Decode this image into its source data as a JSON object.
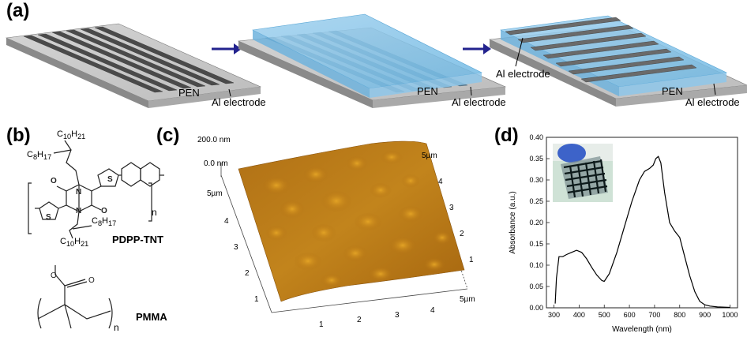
{
  "panels": {
    "a": {
      "letter": "(a)",
      "substrate_label": "PEN",
      "electrode_label": "Al electrode"
    },
    "b": {
      "letter": "(b)",
      "polymer1": "PDPP-TNT",
      "polymer2": "PMMA",
      "chain1": "C",
      "chain1_sub": "10",
      "chain1_tail": "H",
      "chain1_tail_sub": "21",
      "chain2": "C",
      "chain2_sub": "8",
      "chain2_tail": "H",
      "chain2_tail_sub": "17",
      "n": "n"
    },
    "c": {
      "letter": "(c)",
      "z_top": "200.0 nm",
      "z_bottom": "0.0 nm",
      "ticks_y": [
        "1",
        "2",
        "3",
        "4",
        "5µm"
      ],
      "ticks_x": [
        "1",
        "2",
        "3",
        "4",
        "5µm"
      ],
      "ticks_right": [
        "1",
        "2",
        "3",
        "4",
        "5µm"
      ]
    },
    "d": {
      "letter": "(d)"
    }
  },
  "chart_data": {
    "type": "line",
    "xlabel": "Wavelength (nm)",
    "ylabel": "Absorbance (a.u.)",
    "xlim": [
      270,
      1030
    ],
    "ylim": [
      0,
      0.4
    ],
    "xticks": [
      300,
      400,
      500,
      600,
      700,
      800,
      900,
      1000
    ],
    "yticks": [
      0.0,
      0.05,
      0.1,
      0.15,
      0.2,
      0.25,
      0.3,
      0.35,
      0.4
    ],
    "grid": false,
    "legend": "none",
    "series": [
      {
        "color": "#000000",
        "x": [
          305,
          310,
          320,
          335,
          350,
          370,
          390,
          410,
          430,
          450,
          470,
          490,
          500,
          520,
          550,
          580,
          610,
          640,
          660,
          680,
          695,
          705,
          715,
          725,
          740,
          760,
          780,
          800,
          820,
          840,
          860,
          880,
          900,
          920,
          950,
          1000
        ],
        "y": [
          0.01,
          0.07,
          0.12,
          0.12,
          0.125,
          0.13,
          0.135,
          0.13,
          0.115,
          0.095,
          0.077,
          0.064,
          0.062,
          0.08,
          0.13,
          0.19,
          0.25,
          0.3,
          0.32,
          0.327,
          0.335,
          0.35,
          0.355,
          0.34,
          0.27,
          0.2,
          0.18,
          0.165,
          0.12,
          0.075,
          0.038,
          0.015,
          0.007,
          0.004,
          0.002,
          0.001
        ]
      }
    ]
  }
}
